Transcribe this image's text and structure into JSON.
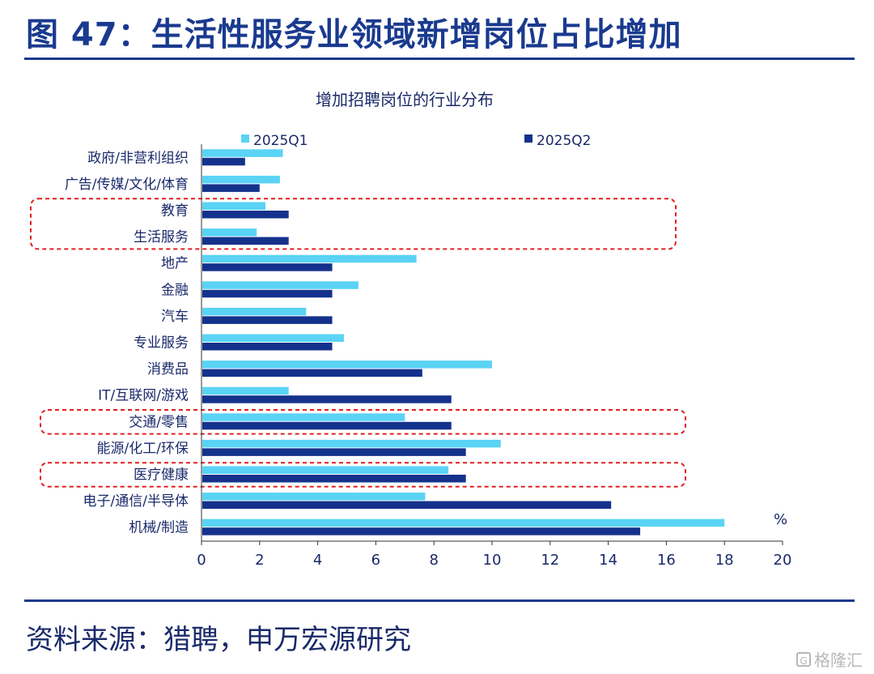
{
  "header": {
    "figure_title": "图 47：生活性服务业领域新增岗位占比增加"
  },
  "footer": {
    "source": "资料来源：猎聘，申万宏源研究",
    "watermark": "格隆汇"
  },
  "colors": {
    "brand": "#1a3a8f",
    "series_q1": "#5ad3f5",
    "series_q2": "#14328c",
    "highlight_box": "#e02020"
  },
  "chart_data": {
    "type": "bar",
    "orientation": "horizontal",
    "title": "增加招聘岗位的行业分布",
    "unit_label": "%",
    "categories": [
      "政府/非营利组织",
      "广告/传媒/文化/体育",
      "教育",
      "生活服务",
      "地产",
      "金融",
      "汽车",
      "专业服务",
      "消费品",
      "IT/互联网/游戏",
      "交通/零售",
      "能源/化工/环保",
      "医疗健康",
      "电子/通信/半导体",
      "机械/制造"
    ],
    "series": [
      {
        "name": "2025Q1",
        "values": [
          2.8,
          2.7,
          2.2,
          1.9,
          7.4,
          5.4,
          3.6,
          4.9,
          10.0,
          3.0,
          7.0,
          10.3,
          8.5,
          7.7,
          18.0
        ]
      },
      {
        "name": "2025Q2",
        "values": [
          1.5,
          2.0,
          3.0,
          3.0,
          4.5,
          4.5,
          4.5,
          4.5,
          7.6,
          8.6,
          8.6,
          9.1,
          9.1,
          14.1,
          15.1
        ]
      }
    ],
    "xlim": [
      0,
      20
    ],
    "xticks": [
      0,
      2,
      4,
      6,
      8,
      10,
      12,
      14,
      16,
      18,
      20
    ],
    "legend_placement": "top",
    "grid": false,
    "highlighted_groups": [
      [
        "教育",
        "生活服务"
      ],
      [
        "交通/零售"
      ],
      [
        "医疗健康"
      ]
    ]
  }
}
